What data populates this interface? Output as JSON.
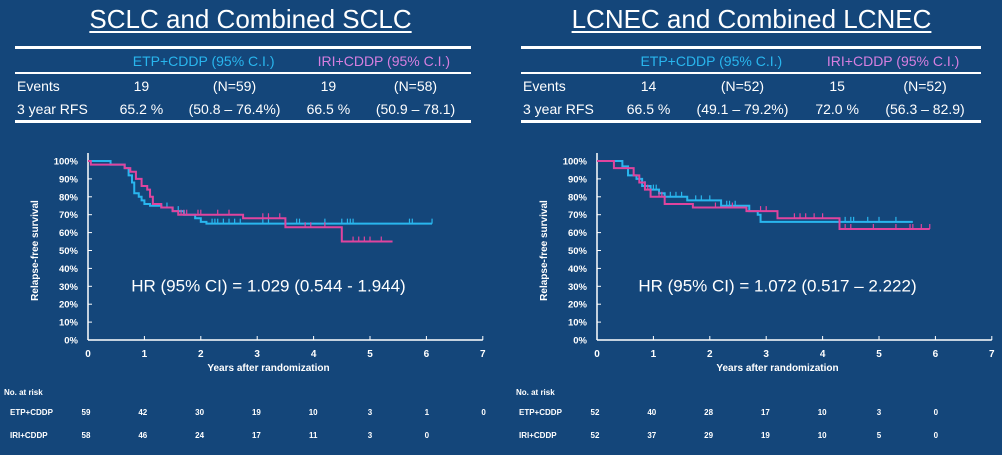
{
  "colors": {
    "background": "#14467a",
    "etp": "#29b6ee",
    "iri": "#e0449e",
    "iri_header": "#d67fe0",
    "axis": "#ffffff"
  },
  "panels": [
    {
      "title": "SCLC and Combined SCLC",
      "table": {
        "headers": [
          "",
          "ETP+CDDP (95% C.I.)",
          "IRI+CDDP (95% C.I.)"
        ],
        "rows": [
          {
            "label": "Events",
            "etp_value": "19",
            "etp_ci": "(N=59)",
            "iri_value": "19",
            "iri_ci": "(N=58)"
          },
          {
            "label": "3 year RFS",
            "etp_value": "65.2 %",
            "etp_ci": "(50.8 – 76.4%)",
            "iri_value": "66.5 %",
            "iri_ci": "(50.9 – 78.1)"
          }
        ]
      },
      "hr_text": "HR (95% CI) = 1.029 (0.544 - 1.944)",
      "risk": {
        "title": "No. at risk",
        "rows": [
          {
            "label": "ETP+CDDP",
            "values": [
              "59",
              "42",
              "30",
              "19",
              "10",
              "3",
              "1",
              "0"
            ]
          },
          {
            "label": "IRI+CDDP",
            "values": [
              "58",
              "46",
              "24",
              "17",
              "11",
              "3",
              "0"
            ]
          }
        ]
      }
    },
    {
      "title": "LCNEC and Combined LCNEC",
      "table": {
        "headers": [
          "",
          "ETP+CDDP (95% C.I.)",
          "IRI+CDDP (95% C.I.)"
        ],
        "rows": [
          {
            "label": "Events",
            "etp_value": "14",
            "etp_ci": "(N=52)",
            "iri_value": "15",
            "iri_ci": "(N=52)"
          },
          {
            "label": "3 year RFS",
            "etp_value": "66.5 %",
            "etp_ci": "(49.1 – 79.2%)",
            "iri_value": "72.0 %",
            "iri_ci": "(56.3 – 82.9)"
          }
        ]
      },
      "hr_text": "HR (95% CI) = 1.072 (0.517 – 2.222)",
      "risk": {
        "title": "No. at risk",
        "rows": [
          {
            "label": "ETP+CDDP",
            "values": [
              "52",
              "40",
              "28",
              "17",
              "10",
              "3",
              "0"
            ]
          },
          {
            "label": "IRI+CDDP",
            "values": [
              "52",
              "37",
              "29",
              "19",
              "10",
              "5",
              "0"
            ]
          }
        ]
      }
    }
  ],
  "chart_data": [
    {
      "type": "line",
      "title": "SCLC and Combined SCLC",
      "xlabel": "Years after randomization",
      "ylabel": "Relapse-free survival",
      "xlim": [
        0,
        7
      ],
      "ylim": [
        0,
        100
      ],
      "x_ticks": [
        "0",
        "1",
        "2",
        "3",
        "4",
        "5",
        "6",
        "7"
      ],
      "y_ticks": [
        "0%",
        "10%",
        "20%",
        "30%",
        "40%",
        "50%",
        "60%",
        "70%",
        "80%",
        "90%",
        "100%"
      ],
      "annotation": "HR (95% CI) = 1.029 (0.544 - 1.944)",
      "series": [
        {
          "name": "ETP+CDDP",
          "step": [
            [
              0,
              100
            ],
            [
              0.4,
              100
            ],
            [
              0.4,
              98
            ],
            [
              0.65,
              98
            ],
            [
              0.65,
              96
            ],
            [
              0.72,
              92
            ],
            [
              0.78,
              88
            ],
            [
              0.82,
              82
            ],
            [
              0.9,
              80
            ],
            [
              0.95,
              78
            ],
            [
              1.0,
              76
            ],
            [
              1.1,
              75
            ],
            [
              1.3,
              74
            ],
            [
              1.5,
              72
            ],
            [
              1.7,
              70
            ],
            [
              1.9,
              68
            ],
            [
              2.0,
              66
            ],
            [
              2.1,
              65
            ],
            [
              2.5,
              65
            ],
            [
              3.0,
              65
            ],
            [
              3.5,
              65
            ],
            [
              4.0,
              65
            ],
            [
              4.5,
              65
            ],
            [
              5.0,
              65
            ],
            [
              5.5,
              65
            ],
            [
              6.1,
              65
            ]
          ],
          "censor_x": [
            1.4,
            1.6,
            2.2,
            2.25,
            2.3,
            2.4,
            2.5,
            2.6,
            2.7,
            3.1,
            3.2,
            3.7,
            3.75,
            4.2,
            4.5,
            4.6,
            4.65,
            4.7,
            5.7,
            5.75,
            6.1
          ]
        },
        {
          "name": "IRI+CDDP",
          "step": [
            [
              0,
              100
            ],
            [
              0.05,
              98
            ],
            [
              0.6,
              98
            ],
            [
              0.65,
              96
            ],
            [
              0.75,
              94
            ],
            [
              0.85,
              90
            ],
            [
              0.95,
              86
            ],
            [
              1.05,
              84
            ],
            [
              1.1,
              80
            ],
            [
              1.15,
              76
            ],
            [
              1.3,
              74
            ],
            [
              1.5,
              72
            ],
            [
              1.6,
              70
            ],
            [
              1.9,
              70
            ],
            [
              2.3,
              70
            ],
            [
              2.6,
              70
            ],
            [
              2.7,
              70
            ],
            [
              2.75,
              68
            ],
            [
              3.4,
              68
            ],
            [
              3.5,
              63
            ],
            [
              4.0,
              63
            ],
            [
              4.5,
              63
            ],
            [
              4.5,
              55
            ],
            [
              5.4,
              55
            ]
          ],
          "censor_x": [
            1.65,
            1.7,
            1.75,
            1.95,
            2.0,
            2.3,
            2.5,
            3.1,
            3.2,
            3.4,
            3.85,
            3.95,
            4.2,
            4.7,
            4.8,
            4.9,
            5.0,
            5.2
          ]
        }
      ]
    },
    {
      "type": "line",
      "title": "LCNEC and Combined LCNEC",
      "xlabel": "Years after randomization",
      "ylabel": "Relapse-free survival",
      "xlim": [
        0,
        7
      ],
      "ylim": [
        0,
        100
      ],
      "x_ticks": [
        "0",
        "1",
        "2",
        "3",
        "4",
        "5",
        "6",
        "7"
      ],
      "y_ticks": [
        "0%",
        "10%",
        "20%",
        "30%",
        "40%",
        "50%",
        "60%",
        "70%",
        "80%",
        "90%",
        "100%"
      ],
      "annotation": "HR (95% CI) = 1.072 (0.517 – 2.222)",
      "series": [
        {
          "name": "ETP+CDDP",
          "step": [
            [
              0,
              100
            ],
            [
              0.4,
              100
            ],
            [
              0.45,
              97
            ],
            [
              0.55,
              92
            ],
            [
              0.7,
              90
            ],
            [
              0.8,
              86
            ],
            [
              0.95,
              84
            ],
            [
              1.1,
              82
            ],
            [
              1.2,
              80
            ],
            [
              1.5,
              80
            ],
            [
              1.6,
              78
            ],
            [
              2.0,
              78
            ],
            [
              2.2,
              75
            ],
            [
              2.6,
              75
            ],
            [
              2.7,
              72
            ],
            [
              2.85,
              70
            ],
            [
              2.9,
              66
            ],
            [
              3.5,
              66
            ],
            [
              4.0,
              66
            ],
            [
              4.5,
              66
            ],
            [
              5.0,
              66
            ],
            [
              5.6,
              66
            ]
          ],
          "censor_x": [
            0.8,
            0.85,
            1.0,
            1.05,
            1.3,
            1.4,
            1.5,
            1.75,
            1.85,
            2.0,
            2.3,
            2.35,
            2.45,
            2.9,
            4.4,
            4.5,
            4.55,
            4.8,
            5.0,
            5.3
          ]
        },
        {
          "name": "IRI+CDDP",
          "step": [
            [
              0,
              100
            ],
            [
              0.25,
              100
            ],
            [
              0.3,
              96
            ],
            [
              0.55,
              96
            ],
            [
              0.65,
              92
            ],
            [
              0.75,
              88
            ],
            [
              0.85,
              84
            ],
            [
              0.95,
              80
            ],
            [
              1.15,
              80
            ],
            [
              1.2,
              76
            ],
            [
              1.5,
              76
            ],
            [
              1.7,
              74
            ],
            [
              2.0,
              74
            ],
            [
              2.6,
              74
            ],
            [
              2.65,
              72
            ],
            [
              3.1,
              72
            ],
            [
              3.2,
              68
            ],
            [
              3.5,
              68
            ],
            [
              4.0,
              68
            ],
            [
              4.3,
              68
            ],
            [
              4.3,
              62
            ],
            [
              5.0,
              62
            ],
            [
              5.5,
              62
            ],
            [
              5.9,
              62
            ]
          ],
          "censor_x": [
            0.9,
            1.1,
            1.15,
            1.2,
            2.1,
            2.4,
            2.9,
            3.0,
            3.5,
            3.6,
            3.7,
            3.85,
            4.0,
            4.4,
            4.5,
            4.9,
            5.3,
            5.55,
            5.6,
            5.75,
            5.9
          ]
        }
      ]
    }
  ]
}
